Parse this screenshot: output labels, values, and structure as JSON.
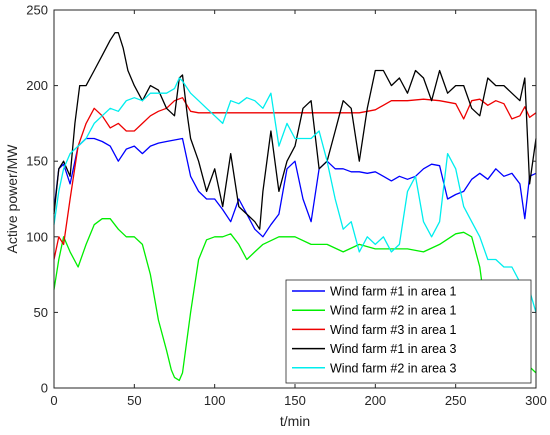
{
  "chart_data": {
    "type": "line",
    "xlabel": "t/min",
    "ylabel": "Active power/MW",
    "xlim": [
      0,
      300
    ],
    "ylim": [
      0,
      250
    ],
    "xticks": [
      0,
      50,
      100,
      150,
      200,
      250,
      300
    ],
    "yticks": [
      0,
      50,
      100,
      150,
      200,
      250
    ],
    "grid": false,
    "legend_position": "bottom-right",
    "series": [
      {
        "name": "Wind farm #1 in area 1",
        "color": "#0000ff",
        "x": [
          0,
          3,
          6,
          10,
          15,
          20,
          25,
          30,
          35,
          40,
          45,
          50,
          55,
          60,
          65,
          70,
          75,
          80,
          85,
          90,
          95,
          100,
          105,
          110,
          115,
          120,
          125,
          130,
          135,
          140,
          145,
          150,
          155,
          160,
          165,
          170,
          175,
          180,
          185,
          190,
          195,
          200,
          205,
          210,
          215,
          220,
          225,
          230,
          235,
          240,
          245,
          250,
          255,
          260,
          265,
          270,
          275,
          280,
          285,
          290,
          293,
          296,
          300
        ],
        "y": [
          118,
          145,
          148,
          135,
          160,
          165,
          165,
          163,
          160,
          150,
          158,
          160,
          155,
          160,
          162,
          163,
          164,
          165,
          140,
          130,
          125,
          125,
          118,
          110,
          125,
          115,
          105,
          100,
          108,
          115,
          145,
          150,
          125,
          110,
          145,
          150,
          145,
          145,
          143,
          143,
          142,
          143,
          140,
          137,
          140,
          138,
          140,
          145,
          148,
          147,
          125,
          128,
          130,
          138,
          142,
          138,
          145,
          140,
          142,
          135,
          112,
          140,
          142
        ]
      },
      {
        "name": "Wind farm #2 in area 1",
        "color": "#00ee00",
        "x": [
          0,
          3,
          6,
          10,
          15,
          20,
          25,
          30,
          35,
          40,
          45,
          50,
          55,
          60,
          65,
          70,
          73,
          75,
          78,
          80,
          85,
          90,
          95,
          100,
          105,
          110,
          115,
          120,
          125,
          130,
          140,
          150,
          160,
          170,
          180,
          190,
          200,
          210,
          220,
          230,
          240,
          250,
          255,
          260,
          265,
          270,
          275,
          280,
          285,
          290,
          295,
          300
        ],
        "y": [
          65,
          85,
          100,
          90,
          80,
          95,
          108,
          112,
          112,
          105,
          100,
          100,
          95,
          75,
          45,
          25,
          12,
          7,
          5,
          10,
          50,
          85,
          98,
          100,
          100,
          102,
          95,
          85,
          90,
          95,
          100,
          100,
          95,
          95,
          90,
          95,
          92,
          92,
          92,
          90,
          95,
          102,
          103,
          100,
          80,
          40,
          20,
          8,
          7,
          8,
          15,
          10
        ]
      },
      {
        "name": "Wind farm #3 in area 1",
        "color": "#ee0000",
        "x": [
          0,
          3,
          6,
          10,
          15,
          20,
          25,
          30,
          35,
          40,
          45,
          50,
          55,
          60,
          65,
          70,
          75,
          80,
          85,
          90,
          100,
          110,
          120,
          130,
          140,
          150,
          160,
          170,
          180,
          190,
          200,
          210,
          220,
          230,
          240,
          250,
          255,
          260,
          265,
          270,
          275,
          280,
          285,
          290,
          293,
          296,
          300
        ],
        "y": [
          85,
          100,
          95,
          125,
          160,
          175,
          185,
          180,
          172,
          175,
          170,
          170,
          175,
          180,
          183,
          185,
          190,
          192,
          183,
          182,
          182,
          182,
          182,
          182,
          182,
          182,
          182,
          182,
          182,
          182,
          184,
          190,
          190,
          191,
          190,
          188,
          178,
          190,
          191,
          187,
          190,
          188,
          178,
          180,
          186,
          179,
          182
        ]
      },
      {
        "name": "Wind farm #1 in area 3",
        "color": "#000000",
        "x": [
          0,
          3,
          6,
          10,
          13,
          16,
          20,
          25,
          30,
          35,
          38,
          40,
          43,
          46,
          50,
          55,
          60,
          65,
          70,
          75,
          78,
          80,
          83,
          85,
          90,
          95,
          100,
          105,
          110,
          115,
          120,
          125,
          128,
          130,
          135,
          140,
          145,
          150,
          155,
          160,
          165,
          170,
          175,
          180,
          185,
          190,
          195,
          200,
          205,
          210,
          215,
          220,
          225,
          230,
          235,
          240,
          245,
          250,
          255,
          260,
          265,
          270,
          275,
          280,
          285,
          290,
          293,
          296,
          300
        ],
        "y": [
          115,
          145,
          150,
          140,
          175,
          200,
          200,
          210,
          220,
          230,
          235,
          235,
          225,
          210,
          200,
          190,
          200,
          197,
          185,
          180,
          205,
          207,
          180,
          165,
          150,
          130,
          145,
          120,
          155,
          120,
          115,
          110,
          105,
          130,
          170,
          130,
          150,
          160,
          185,
          190,
          145,
          150,
          170,
          190,
          185,
          150,
          185,
          210,
          210,
          200,
          205,
          195,
          210,
          205,
          190,
          210,
          195,
          200,
          200,
          185,
          180,
          205,
          200,
          200,
          195,
          190,
          205,
          135,
          165
        ]
      },
      {
        "name": "Wind farm #2 in area 3",
        "color": "#00eeee",
        "x": [
          0,
          3,
          6,
          10,
          15,
          20,
          25,
          30,
          35,
          40,
          45,
          50,
          55,
          60,
          65,
          70,
          75,
          78,
          80,
          85,
          90,
          95,
          100,
          105,
          110,
          115,
          120,
          125,
          130,
          135,
          140,
          145,
          150,
          155,
          160,
          165,
          170,
          175,
          180,
          185,
          190,
          195,
          200,
          205,
          210,
          215,
          220,
          225,
          230,
          235,
          240,
          245,
          250,
          255,
          260,
          265,
          270,
          275,
          280,
          285,
          290,
          295,
          300
        ],
        "y": [
          108,
          130,
          145,
          155,
          160,
          165,
          175,
          180,
          185,
          183,
          190,
          192,
          190,
          195,
          195,
          195,
          198,
          205,
          203,
          195,
          190,
          185,
          180,
          175,
          190,
          188,
          192,
          190,
          185,
          195,
          160,
          175,
          165,
          165,
          165,
          170,
          150,
          125,
          105,
          110,
          90,
          100,
          95,
          100,
          90,
          95,
          130,
          140,
          110,
          100,
          110,
          155,
          145,
          120,
          110,
          100,
          85,
          85,
          80,
          80,
          70,
          68,
          50
        ]
      }
    ]
  }
}
